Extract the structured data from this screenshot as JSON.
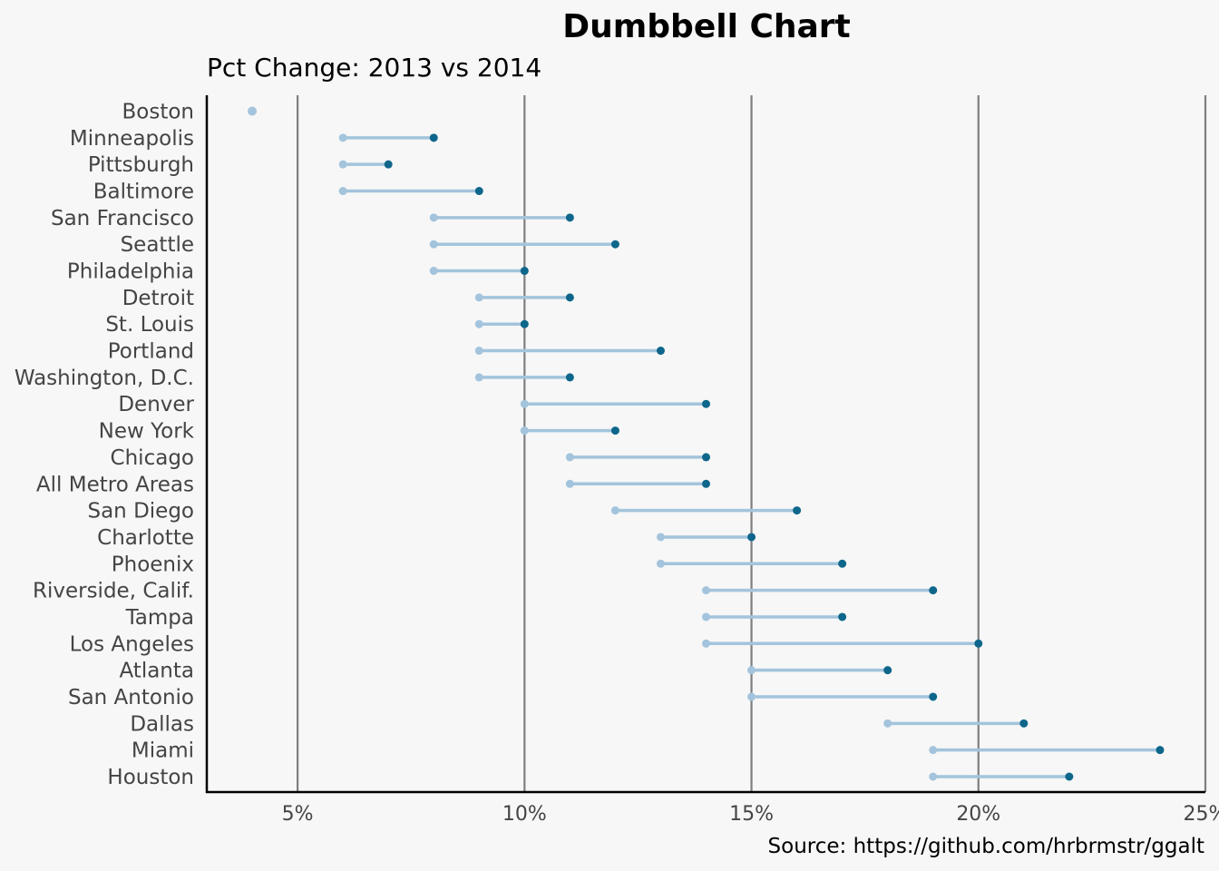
{
  "chart_data": {
    "type": "dumbbell",
    "title": "Dumbbell Chart",
    "subtitle": "Pct Change: 2013 vs 2014",
    "caption": "Source: https://github.com/hrbrmstr/ggalt",
    "xlabel": "",
    "ylabel": "",
    "xlim": [
      3,
      25
    ],
    "xticks": [
      5,
      10,
      15,
      20,
      25
    ],
    "xtick_labels": [
      "5%",
      "10%",
      "15%",
      "20%",
      "25%"
    ],
    "grid": "vertical major",
    "colors": {
      "background": "#f7f7f7",
      "point_2013": "#a3c4dc",
      "point_2014": "#0e668b",
      "segment": "#a3c4dc",
      "grid": "#7f7f7f",
      "axis": "#000000"
    },
    "series": [
      {
        "key": "pct_2013",
        "values": [
          4,
          6,
          6,
          6,
          8,
          8,
          8,
          9,
          9,
          9,
          9,
          10,
          10,
          11,
          11,
          12,
          13,
          13,
          14,
          14,
          14,
          15,
          15,
          18,
          19,
          19
        ]
      },
      {
        "key": "pct_2014",
        "values": [
          4,
          8,
          7,
          9,
          11,
          12,
          10,
          11,
          10,
          13,
          11,
          14,
          12,
          14,
          14,
          16,
          15,
          17,
          19,
          17,
          20,
          18,
          19,
          21,
          24,
          22
        ]
      }
    ],
    "categories": [
      "Boston",
      "Minneapolis",
      "Pittsburgh",
      "Baltimore",
      "San Francisco",
      "Seattle",
      "Philadelphia",
      "Detroit",
      "St. Louis",
      "Portland",
      "Washington, D.C.",
      "Denver",
      "New York",
      "Chicago",
      "All Metro Areas",
      "San Diego",
      "Charlotte",
      "Phoenix",
      "Riverside, Calif.",
      "Tampa",
      "Los Angeles",
      "Atlanta",
      "San Antonio",
      "Dallas",
      "Miami",
      "Houston"
    ]
  }
}
